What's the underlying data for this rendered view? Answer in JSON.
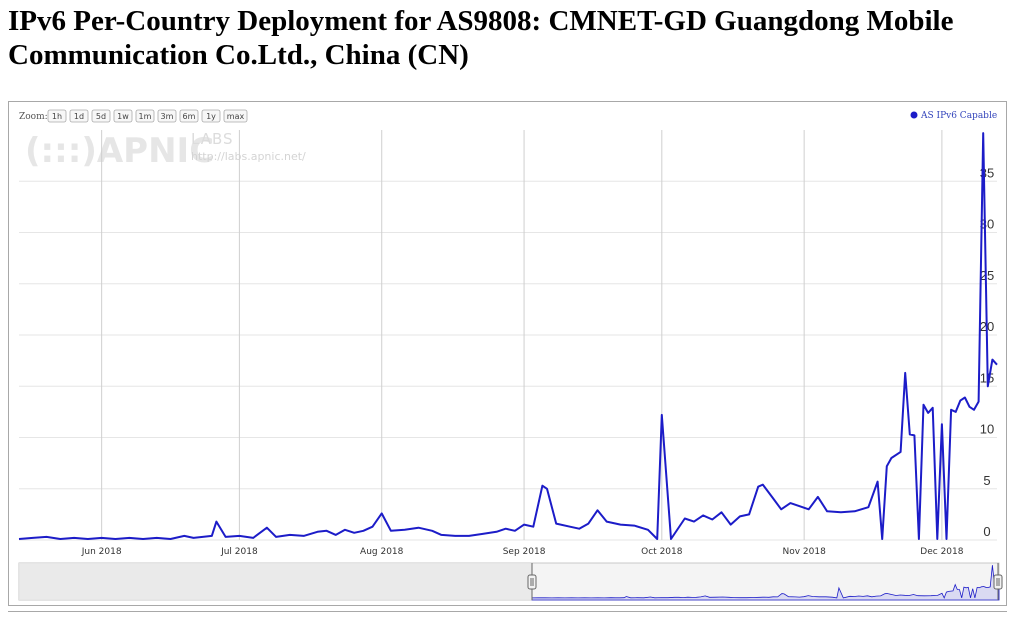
{
  "title": "IPv6 Per-Country Deployment for AS9808: CMNET-GD Guangdong Mobile Communication Co.Ltd., China (CN)",
  "zoom": {
    "label": "Zoom:",
    "buttons": [
      "1h",
      "1d",
      "5d",
      "1w",
      "1m",
      "3m",
      "6m",
      "1y",
      "max"
    ]
  },
  "watermark": {
    "logo": "(:::)APNIC",
    "labs": "LABS",
    "url": "http://labs.apnic.net/"
  },
  "colors": {
    "series": "#1c1cc8",
    "grid": "#e6e6e6",
    "vgrid": "#cfcfcf",
    "navigator_fill": "#dadaf2",
    "navigator_mask": "#e8e8e8"
  },
  "chart_data": {
    "type": "line",
    "title": "",
    "xlabel": "",
    "ylabel": "",
    "x_range": [
      "2018-05-14",
      "2018-12-13"
    ],
    "ylim": [
      0,
      40
    ],
    "y_ticks": [
      0,
      5,
      10,
      15,
      20,
      25,
      30,
      35
    ],
    "y_axis_side": "right",
    "x_ticks": [
      {
        "date": "2018-06-01",
        "label": "Jun 2018"
      },
      {
        "date": "2018-07-01",
        "label": "Jul 2018"
      },
      {
        "date": "2018-08-01",
        "label": "Aug 2018"
      },
      {
        "date": "2018-09-01",
        "label": "Sep 2018"
      },
      {
        "date": "2018-10-01",
        "label": "Oct 2018"
      },
      {
        "date": "2018-11-01",
        "label": "Nov 2018"
      },
      {
        "date": "2018-12-01",
        "label": "Dec 2018"
      }
    ],
    "grid": true,
    "legend": {
      "position": "top-right"
    },
    "series": [
      {
        "name": "AS IPv6 Capable",
        "points": [
          [
            "2018-05-14",
            0.1
          ],
          [
            "2018-05-17",
            0.2
          ],
          [
            "2018-05-20",
            0.3
          ],
          [
            "2018-05-23",
            0.1
          ],
          [
            "2018-05-26",
            0.2
          ],
          [
            "2018-05-29",
            0.1
          ],
          [
            "2018-06-01",
            0.2
          ],
          [
            "2018-06-04",
            0.1
          ],
          [
            "2018-06-07",
            0.2
          ],
          [
            "2018-06-10",
            0.1
          ],
          [
            "2018-06-13",
            0.2
          ],
          [
            "2018-06-16",
            0.1
          ],
          [
            "2018-06-19",
            0.4
          ],
          [
            "2018-06-21",
            0.2
          ],
          [
            "2018-06-23",
            0.3
          ],
          [
            "2018-06-25",
            0.4
          ],
          [
            "2018-06-26",
            1.8
          ],
          [
            "2018-06-28",
            0.3
          ],
          [
            "2018-07-01",
            0.4
          ],
          [
            "2018-07-04",
            0.2
          ],
          [
            "2018-07-07",
            1.2
          ],
          [
            "2018-07-09",
            0.3
          ],
          [
            "2018-07-12",
            0.5
          ],
          [
            "2018-07-15",
            0.4
          ],
          [
            "2018-07-18",
            0.8
          ],
          [
            "2018-07-20",
            0.9
          ],
          [
            "2018-07-22",
            0.5
          ],
          [
            "2018-07-24",
            1.0
          ],
          [
            "2018-07-26",
            0.7
          ],
          [
            "2018-07-28",
            0.9
          ],
          [
            "2018-07-30",
            1.3
          ],
          [
            "2018-08-01",
            2.6
          ],
          [
            "2018-08-03",
            0.9
          ],
          [
            "2018-08-06",
            1.0
          ],
          [
            "2018-08-09",
            1.2
          ],
          [
            "2018-08-12",
            0.9
          ],
          [
            "2018-08-14",
            0.5
          ],
          [
            "2018-08-17",
            0.4
          ],
          [
            "2018-08-20",
            0.4
          ],
          [
            "2018-08-23",
            0.6
          ],
          [
            "2018-08-26",
            0.8
          ],
          [
            "2018-08-28",
            1.1
          ],
          [
            "2018-08-30",
            0.9
          ],
          [
            "2018-09-01",
            1.5
          ],
          [
            "2018-09-03",
            1.3
          ],
          [
            "2018-09-05",
            5.3
          ],
          [
            "2018-09-06",
            5.0
          ],
          [
            "2018-09-08",
            1.6
          ],
          [
            "2018-09-11",
            1.3
          ],
          [
            "2018-09-13",
            1.1
          ],
          [
            "2018-09-15",
            1.6
          ],
          [
            "2018-09-17",
            2.9
          ],
          [
            "2018-09-19",
            1.8
          ],
          [
            "2018-09-22",
            1.5
          ],
          [
            "2018-09-25",
            1.4
          ],
          [
            "2018-09-28",
            1.0
          ],
          [
            "2018-09-30",
            0.1
          ],
          [
            "2018-10-01",
            12.2
          ],
          [
            "2018-10-03",
            0.1
          ],
          [
            "2018-10-06",
            2.1
          ],
          [
            "2018-10-08",
            1.8
          ],
          [
            "2018-10-10",
            2.4
          ],
          [
            "2018-10-12",
            2.0
          ],
          [
            "2018-10-14",
            2.7
          ],
          [
            "2018-10-16",
            1.5
          ],
          [
            "2018-10-18",
            2.3
          ],
          [
            "2018-10-20",
            2.5
          ],
          [
            "2018-10-22",
            5.2
          ],
          [
            "2018-10-23",
            5.4
          ],
          [
            "2018-10-25",
            4.2
          ],
          [
            "2018-10-27",
            3.0
          ],
          [
            "2018-10-29",
            3.6
          ],
          [
            "2018-10-31",
            3.3
          ],
          [
            "2018-11-02",
            3.0
          ],
          [
            "2018-11-04",
            4.2
          ],
          [
            "2018-11-06",
            2.8
          ],
          [
            "2018-11-09",
            2.7
          ],
          [
            "2018-11-12",
            2.8
          ],
          [
            "2018-11-15",
            3.2
          ],
          [
            "2018-11-17",
            5.7
          ],
          [
            "2018-11-18",
            0.1
          ],
          [
            "2018-11-19",
            7.2
          ],
          [
            "2018-11-20",
            8.0
          ],
          [
            "2018-11-22",
            8.6
          ],
          [
            "2018-11-23",
            16.3
          ],
          [
            "2018-11-24",
            10.3
          ],
          [
            "2018-11-25",
            10.2
          ],
          [
            "2018-11-26",
            0.1
          ],
          [
            "2018-11-27",
            13.2
          ],
          [
            "2018-11-28",
            12.4
          ],
          [
            "2018-11-29",
            12.9
          ],
          [
            "2018-11-30",
            0.1
          ],
          [
            "2018-12-01",
            11.3
          ],
          [
            "2018-12-02",
            0.1
          ],
          [
            "2018-12-03",
            12.7
          ],
          [
            "2018-12-04",
            12.5
          ],
          [
            "2018-12-05",
            13.6
          ],
          [
            "2018-12-06",
            13.9
          ],
          [
            "2018-12-07",
            13.0
          ],
          [
            "2018-12-08",
            12.7
          ],
          [
            "2018-12-09",
            13.5
          ],
          [
            "2018-12-10",
            39.7
          ],
          [
            "2018-12-11",
            15.0
          ],
          [
            "2018-12-12",
            17.6
          ],
          [
            "2018-12-13",
            17.1
          ]
        ]
      }
    ]
  }
}
